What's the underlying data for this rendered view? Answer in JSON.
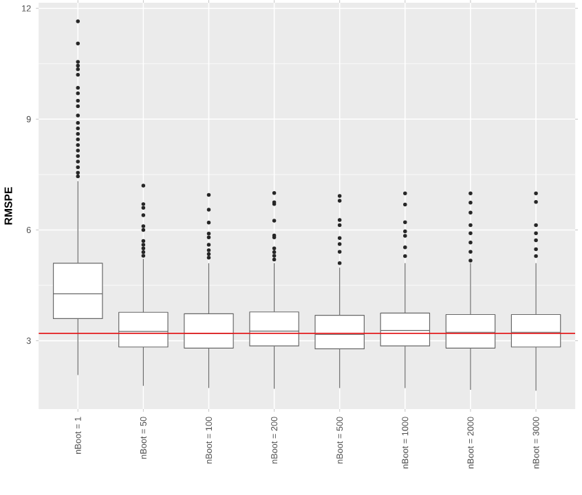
{
  "chart_data": {
    "type": "box",
    "ylabel": "RMSPE",
    "categories": [
      "nBoot = 1",
      "nBoot = 50",
      "nBoot = 100",
      "nBoot = 200",
      "nBoot = 500",
      "nBoot = 1000",
      "nBoot = 2000",
      "nBoot = 3000"
    ],
    "boxes": [
      {
        "low": 2.07,
        "q1": 3.6,
        "median": 4.27,
        "q3": 5.1,
        "high": 7.32,
        "outliers": [
          7.45,
          7.55,
          7.7,
          7.85,
          8.0,
          8.15,
          8.3,
          8.45,
          8.6,
          8.75,
          8.9,
          9.1,
          9.35,
          9.5,
          9.7,
          9.85,
          10.2,
          10.35,
          10.45,
          10.55,
          11.05,
          11.65
        ]
      },
      {
        "low": 1.78,
        "q1": 2.83,
        "median": 3.25,
        "q3": 3.77,
        "high": 5.22,
        "outliers": [
          5.3,
          5.4,
          5.5,
          5.6,
          5.7,
          6.0,
          6.1,
          6.4,
          6.6,
          6.7,
          7.2
        ]
      },
      {
        "low": 1.72,
        "q1": 2.8,
        "median": 3.2,
        "q3": 3.73,
        "high": 5.1,
        "outliers": [
          5.25,
          5.35,
          5.45,
          5.6,
          5.8,
          5.9,
          6.2,
          6.55,
          6.95
        ]
      },
      {
        "low": 1.7,
        "q1": 2.86,
        "median": 3.26,
        "q3": 3.78,
        "high": 5.1,
        "outliers": [
          5.2,
          5.3,
          5.4,
          5.5,
          5.8,
          5.85,
          6.25,
          6.7,
          6.75,
          7.0
        ]
      },
      {
        "low": 1.72,
        "q1": 2.78,
        "median": 3.17,
        "q3": 3.69,
        "high": 4.98,
        "outliers": [
          5.1,
          5.41,
          5.62,
          5.78,
          6.13,
          6.27,
          6.79,
          6.92
        ]
      },
      {
        "low": 1.72,
        "q1": 2.86,
        "median": 3.28,
        "q3": 3.75,
        "high": 5.1,
        "outliers": [
          5.29,
          5.53,
          5.84,
          5.96,
          6.21,
          6.69,
          6.99
        ]
      },
      {
        "low": 1.67,
        "q1": 2.8,
        "median": 3.23,
        "q3": 3.71,
        "high": 5.1,
        "outliers": [
          5.17,
          5.41,
          5.66,
          5.91,
          6.13,
          6.47,
          6.74,
          6.99
        ]
      },
      {
        "low": 1.65,
        "q1": 2.83,
        "median": 3.23,
        "q3": 3.71,
        "high": 5.1,
        "outliers": [
          5.29,
          5.48,
          5.72,
          5.91,
          6.13,
          6.76,
          6.99
        ]
      }
    ],
    "ylim": [
      1.15,
      12.15
    ],
    "yticks": [
      3,
      6,
      9,
      12
    ],
    "grid": true,
    "ref_lines": [
      {
        "axis": "y",
        "value": 3.2,
        "color": "#e31a1c"
      }
    ]
  }
}
